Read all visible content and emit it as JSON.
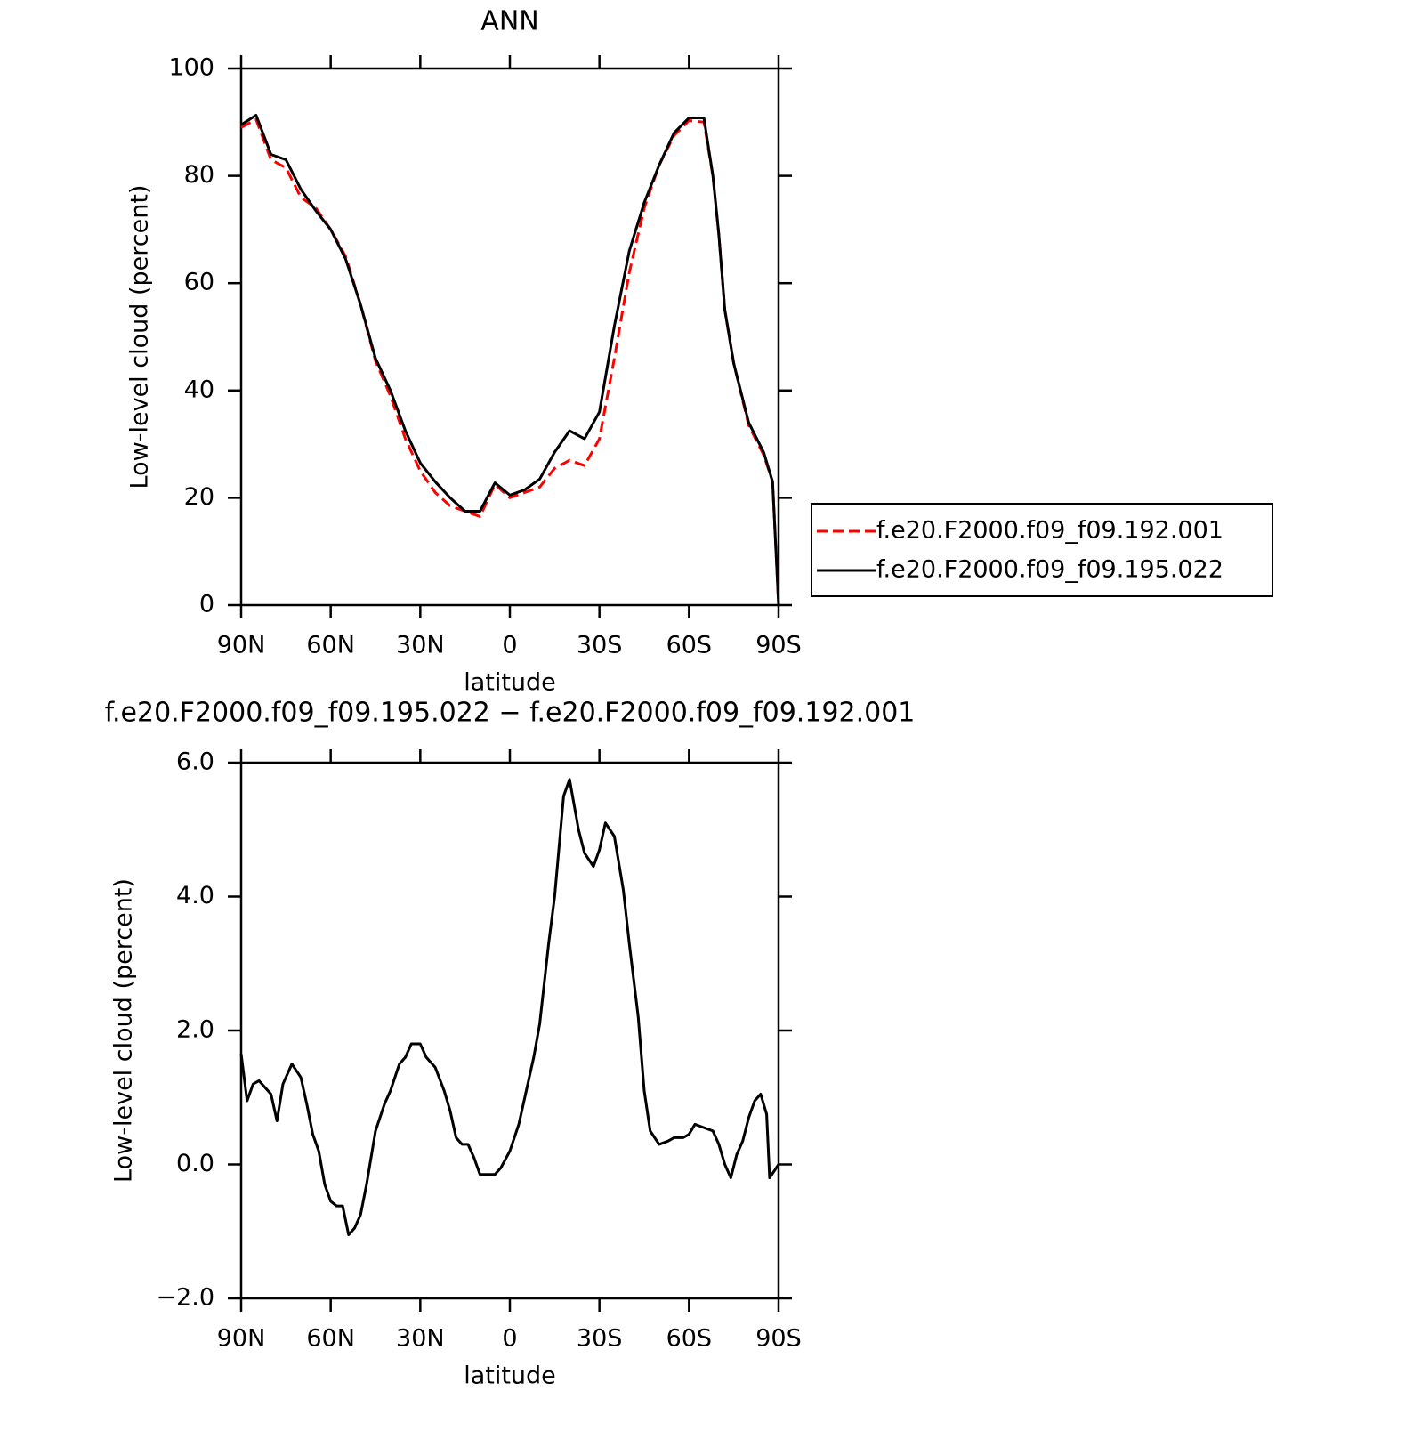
{
  "chart_data": [
    {
      "type": "line",
      "title": "ANN",
      "x_label": "latitude",
      "y_label": "Low-level cloud (percent)",
      "x": [
        90,
        85,
        80,
        75,
        70,
        65,
        60,
        55,
        50,
        45,
        40,
        35,
        30,
        25,
        20,
        15,
        10,
        5,
        0,
        -5,
        -10,
        -15,
        -20,
        -25,
        -30,
        -35,
        -40,
        -45,
        -50,
        -55,
        -60,
        -65,
        -68,
        -70,
        -72,
        -75,
        -80,
        -85,
        -88,
        -90
      ],
      "series": [
        {
          "name": "f.e20.F2000.f09_f09.192.001",
          "color": "#ff0000",
          "dashed": true,
          "values": [
            89,
            90.5,
            83,
            81.5,
            76,
            74,
            70,
            65,
            56,
            45.5,
            39,
            31,
            25,
            21,
            18.5,
            17.5,
            16.5,
            22.5,
            20,
            21,
            22,
            25.5,
            27,
            26,
            31,
            46,
            62,
            74,
            82,
            87.5,
            90.3,
            90,
            80,
            69,
            55,
            45,
            33.5,
            28,
            23,
            0
          ]
        },
        {
          "name": "f.e20.F2000.f09_f09.195.022",
          "color": "#000000",
          "dashed": false,
          "values": [
            89.5,
            91.3,
            84,
            83,
            77.5,
            73.5,
            70,
            64.5,
            56,
            46,
            40,
            32.5,
            26.5,
            23,
            20,
            17.5,
            17.5,
            22.8,
            20.5,
            21.5,
            23.5,
            28.5,
            32.5,
            31,
            36,
            52,
            66,
            75,
            82,
            88,
            90.8,
            90.8,
            80,
            69,
            55,
            45,
            34,
            28.5,
            23,
            0
          ]
        }
      ],
      "xlim": [
        90,
        -90
      ],
      "xticks": [
        {
          "value": 90,
          "label": "90N"
        },
        {
          "value": 60,
          "label": "60N"
        },
        {
          "value": 30,
          "label": "30N"
        },
        0,
        {
          "value": -30,
          "label": "30S"
        },
        {
          "value": -60,
          "label": "60S"
        },
        {
          "value": -90,
          "label": "90S"
        }
      ],
      "ylim": [
        0,
        100
      ],
      "yticks": [
        0,
        20,
        40,
        60,
        80,
        100
      ],
      "legend": "right"
    },
    {
      "type": "line",
      "title": "f.e20.F2000.f09_f09.195.022 − f.e20.F2000.f09_f09.192.001",
      "x_label": "latitude",
      "y_label": "Low-level cloud (percent)",
      "x": [
        90,
        88,
        86,
        84,
        80,
        78,
        76,
        73,
        70,
        68,
        66,
        64,
        62,
        60,
        58,
        56,
        54,
        52,
        50,
        48,
        45,
        42,
        40,
        37,
        35,
        33,
        30,
        28,
        25,
        22,
        20,
        18,
        16,
        14,
        12,
        10,
        7,
        5,
        3,
        0,
        -3,
        -5,
        -8,
        -10,
        -13,
        -15,
        -18,
        -20,
        -23,
        -25,
        -28,
        -30,
        -32,
        -35,
        -38,
        -40,
        -43,
        -45,
        -47,
        -50,
        -53,
        -55,
        -58,
        -60,
        -62,
        -65,
        -68,
        -70,
        -72,
        -74,
        -76,
        -78,
        -80,
        -82,
        -84,
        -86,
        -87,
        -90
      ],
      "series": [
        {
          "color": "#000000",
          "dashed": false,
          "values": [
            1.65,
            0.95,
            1.2,
            1.25,
            1.05,
            0.65,
            1.2,
            1.5,
            1.3,
            0.9,
            0.45,
            0.2,
            -0.3,
            -0.55,
            -0.62,
            -0.62,
            -1.05,
            -0.95,
            -0.75,
            -0.3,
            0.5,
            0.9,
            1.1,
            1.5,
            1.6,
            1.8,
            1.8,
            1.6,
            1.45,
            1.1,
            0.8,
            0.4,
            0.3,
            0.3,
            0.1,
            -0.15,
            -0.15,
            -0.15,
            -0.05,
            0.2,
            0.6,
            1.0,
            1.6,
            2.1,
            3.3,
            4.0,
            5.5,
            5.75,
            5.0,
            4.65,
            4.45,
            4.7,
            5.1,
            4.9,
            4.1,
            3.3,
            2.2,
            1.1,
            0.5,
            0.3,
            0.35,
            0.4,
            0.4,
            0.45,
            0.6,
            0.55,
            0.5,
            0.3,
            0.0,
            -0.2,
            0.15,
            0.35,
            0.7,
            0.95,
            1.05,
            0.75,
            -0.2,
            0.0
          ]
        }
      ],
      "xlim": [
        90,
        -90
      ],
      "xticks": [
        {
          "value": 90,
          "label": "90N"
        },
        {
          "value": 60,
          "label": "60N"
        },
        {
          "value": 30,
          "label": "30N"
        },
        0,
        {
          "value": -30,
          "label": "30S"
        },
        {
          "value": -60,
          "label": "60S"
        },
        {
          "value": -90,
          "label": "90S"
        }
      ],
      "ylim": [
        -2,
        6
      ],
      "yticks": [
        {
          "value": -2,
          "label": "−2.0"
        },
        {
          "value": 0,
          "label": "0.0"
        },
        {
          "value": 2,
          "label": "2.0"
        },
        {
          "value": 4,
          "label": "4.0"
        },
        {
          "value": 6,
          "label": "6.0"
        }
      ]
    }
  ]
}
